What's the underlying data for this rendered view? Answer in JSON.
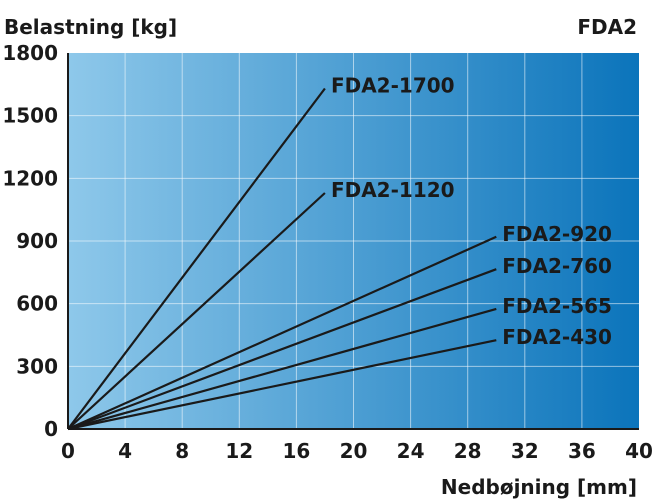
{
  "chart_data": {
    "type": "line",
    "title": "FDA2",
    "ylabel": "Belastning [kg]",
    "xlabel": "Nedbøjning [mm]",
    "xlim": [
      0,
      40
    ],
    "ylim": [
      0,
      1800
    ],
    "x_ticks": [
      "0",
      "4",
      "8",
      "12",
      "16",
      "20",
      "24",
      "28",
      "32",
      "36",
      "40"
    ],
    "y_ticks": [
      "0",
      "300",
      "600",
      "900",
      "1200",
      "1500",
      "1800"
    ],
    "grid": true,
    "background": {
      "from": "#8ec8ea",
      "to": "#0b74bb"
    },
    "line_color": "#1a1a1a",
    "series": [
      {
        "name": "FDA2-1700",
        "points": [
          [
            0,
            0
          ],
          [
            18,
            1630
          ]
        ]
      },
      {
        "name": "FDA2-1120",
        "points": [
          [
            0,
            0
          ],
          [
            18,
            1130
          ]
        ]
      },
      {
        "name": "FDA2-920",
        "points": [
          [
            0,
            0
          ],
          [
            30,
            920
          ]
        ]
      },
      {
        "name": "FDA2-760",
        "points": [
          [
            0,
            0
          ],
          [
            30,
            765
          ]
        ]
      },
      {
        "name": "FDA2-565",
        "points": [
          [
            0,
            0
          ],
          [
            30,
            575
          ]
        ]
      },
      {
        "name": "FDA2-430",
        "points": [
          [
            0,
            0
          ],
          [
            30,
            425
          ]
        ]
      }
    ]
  }
}
